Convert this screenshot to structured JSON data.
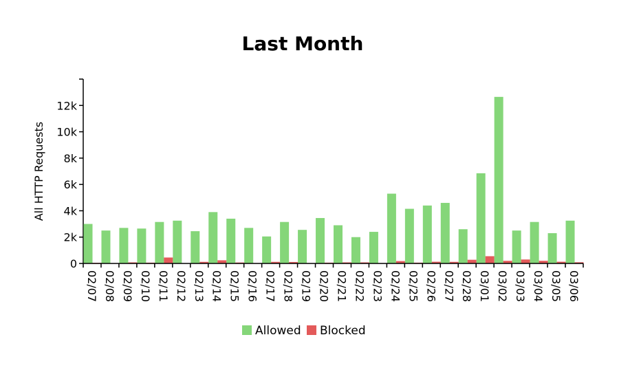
{
  "chart_data": {
    "type": "bar",
    "title": "Last Month",
    "xlabel": "",
    "ylabel": "All HTTP Requests",
    "ylim": [
      0,
      14000
    ],
    "yticks": [
      0,
      2000,
      4000,
      6000,
      8000,
      10000,
      12000
    ],
    "ytick_labels": [
      "0",
      "2k",
      "4k",
      "6k",
      "8k",
      "10k",
      "12k"
    ],
    "categories": [
      "02/07",
      "02/08",
      "02/09",
      "02/10",
      "02/11",
      "02/12",
      "02/13",
      "02/14",
      "02/15",
      "02/16",
      "02/17",
      "02/18",
      "02/19",
      "02/20",
      "02/21",
      "02/22",
      "02/23",
      "02/24",
      "02/25",
      "02/26",
      "02/27",
      "02/28",
      "03/01",
      "03/02",
      "03/03",
      "03/04",
      "03/05",
      "03/06"
    ],
    "series": [
      {
        "name": "Allowed",
        "color": "#85d679",
        "values": [
          3000,
          2500,
          2700,
          2650,
          3150,
          3250,
          2450,
          3900,
          3400,
          2700,
          2050,
          3150,
          2550,
          3450,
          2900,
          2000,
          2400,
          5300,
          4150,
          4400,
          4600,
          2600,
          6850,
          12650,
          2500,
          3150,
          2300,
          3250
        ]
      },
      {
        "name": "Blocked",
        "color": "#e35a5a",
        "values": [
          50,
          20,
          80,
          60,
          450,
          20,
          120,
          240,
          70,
          30,
          120,
          110,
          30,
          60,
          80,
          80,
          30,
          180,
          60,
          130,
          120,
          280,
          550,
          200,
          300,
          200,
          130,
          90
        ]
      }
    ],
    "legend_position": "bottom-center",
    "grid": false
  }
}
